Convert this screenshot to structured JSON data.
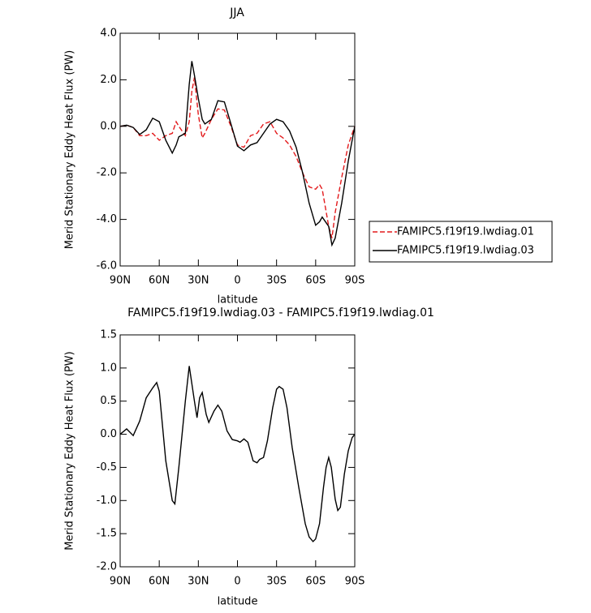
{
  "chart_data": [
    {
      "type": "line",
      "title": "JJA",
      "xlabel": "latitude",
      "ylabel": "Merid Stationary Eddy Heat Flux (PW)",
      "x": [
        90,
        85,
        80,
        75,
        70,
        65,
        60,
        55,
        50,
        47,
        45,
        40,
        37,
        35,
        33,
        30,
        27,
        25,
        20,
        15,
        10,
        5,
        0,
        -5,
        -10,
        -15,
        -20,
        -25,
        -30,
        -35,
        -40,
        -45,
        -50,
        -55,
        -60,
        -63,
        -65,
        -70,
        -72.5,
        -75,
        -80,
        -85,
        -90
      ],
      "series": [
        {
          "name": "FAMIPC5.f19f19.lwdiag.01",
          "color": "#e31a1c",
          "dash": true,
          "values": [
            0.0,
            0.05,
            -0.05,
            -0.4,
            -0.4,
            -0.3,
            -0.6,
            -0.4,
            -0.3,
            0.2,
            0.0,
            -0.4,
            0.2,
            1.5,
            2.1,
            0.5,
            -0.5,
            -0.3,
            0.3,
            0.75,
            0.7,
            0.0,
            -0.8,
            -0.9,
            -0.4,
            -0.3,
            0.1,
            0.2,
            -0.3,
            -0.5,
            -0.8,
            -1.3,
            -2.0,
            -2.6,
            -2.7,
            -2.5,
            -2.7,
            -4.3,
            -4.8,
            -3.7,
            -2.2,
            -0.8,
            0.0
          ]
        },
        {
          "name": "FAMIPC5.f19f19.lwdiag.03",
          "color": "#000000",
          "dash": false,
          "values": [
            0.0,
            0.05,
            -0.05,
            -0.35,
            -0.15,
            0.35,
            0.2,
            -0.6,
            -1.15,
            -0.8,
            -0.45,
            -0.3,
            1.8,
            2.8,
            2.2,
            1.2,
            0.3,
            0.1,
            0.3,
            1.1,
            1.05,
            0.1,
            -0.85,
            -1.05,
            -0.8,
            -0.7,
            -0.3,
            0.1,
            0.3,
            0.2,
            -0.2,
            -0.9,
            -2.0,
            -3.3,
            -4.25,
            -4.1,
            -3.9,
            -4.3,
            -5.1,
            -4.8,
            -3.3,
            -1.5,
            0.0
          ]
        }
      ],
      "xlim": [
        90,
        -90
      ],
      "xticks": [
        {
          "value": 90,
          "label": "90N"
        },
        {
          "value": 60,
          "label": "60N"
        },
        {
          "value": 30,
          "label": "30N"
        },
        0,
        {
          "value": -30,
          "label": "30S"
        },
        {
          "value": -60,
          "label": "60S"
        },
        {
          "value": -90,
          "label": "90S"
        }
      ],
      "ylim": [
        -6,
        4
      ],
      "yticks": [
        {
          "value": 4,
          "label": "4.0"
        },
        {
          "value": 2,
          "label": "2.0"
        },
        {
          "value": 0,
          "label": "0.0"
        },
        {
          "value": -2,
          "label": "-2.0"
        },
        {
          "value": -4,
          "label": "-4.0"
        },
        {
          "value": -6,
          "label": "-6.0"
        }
      ],
      "legend": "right"
    },
    {
      "type": "line",
      "title": "FAMIPC5.f19f19.lwdiag.03 - FAMIPC5.f19f19.lwdiag.01",
      "xlabel": "latitude",
      "ylabel": "Merid Stationary Eddy Heat Flux (PW)",
      "x": [
        90,
        85,
        80,
        75,
        70,
        65,
        62,
        60,
        55,
        50,
        48,
        45,
        40,
        37,
        33,
        31,
        29,
        27,
        24,
        22,
        18,
        15,
        12,
        8,
        4,
        0,
        -2,
        -5,
        -8,
        -12,
        -15,
        -17,
        -20,
        -23,
        -27,
        -30,
        -32,
        -35,
        -38,
        -42,
        -47,
        -52,
        -55,
        -58,
        -60,
        -63,
        -66,
        -68,
        -70,
        -72,
        -75,
        -77,
        -79,
        -82,
        -85,
        -88,
        -90
      ],
      "values": [
        0.0,
        0.08,
        -0.02,
        0.2,
        0.55,
        0.7,
        0.78,
        0.65,
        -0.4,
        -1.0,
        -1.05,
        -0.5,
        0.5,
        1.03,
        0.5,
        0.25,
        0.55,
        0.63,
        0.3,
        0.18,
        0.35,
        0.44,
        0.35,
        0.05,
        -0.08,
        -0.1,
        -0.12,
        -0.07,
        -0.12,
        -0.4,
        -0.43,
        -0.38,
        -0.35,
        -0.1,
        0.4,
        0.68,
        0.72,
        0.68,
        0.4,
        -0.2,
        -0.8,
        -1.35,
        -1.55,
        -1.62,
        -1.58,
        -1.35,
        -0.8,
        -0.5,
        -0.35,
        -0.5,
        -0.98,
        -1.15,
        -1.1,
        -0.6,
        -0.25,
        -0.05,
        0.0
      ],
      "color": "#000000",
      "xlim": [
        90,
        -90
      ],
      "xticks": [
        {
          "value": 90,
          "label": "90N"
        },
        {
          "value": 60,
          "label": "60N"
        },
        {
          "value": 30,
          "label": "30N"
        },
        0,
        {
          "value": -30,
          "label": "30S"
        },
        {
          "value": -60,
          "label": "60S"
        },
        {
          "value": -90,
          "label": "90S"
        }
      ],
      "ylim": [
        -2,
        1.5
      ],
      "yticks": [
        {
          "value": 1.5,
          "label": "1.5"
        },
        {
          "value": 1,
          "label": "1.0"
        },
        {
          "value": 0.5,
          "label": "0.5"
        },
        {
          "value": 0,
          "label": "0.0"
        },
        {
          "value": -0.5,
          "label": "-0.5"
        },
        {
          "value": -1,
          "label": "-1.0"
        },
        {
          "value": -1.5,
          "label": "-1.5"
        },
        {
          "value": -2,
          "label": "-2.0"
        }
      ]
    }
  ]
}
